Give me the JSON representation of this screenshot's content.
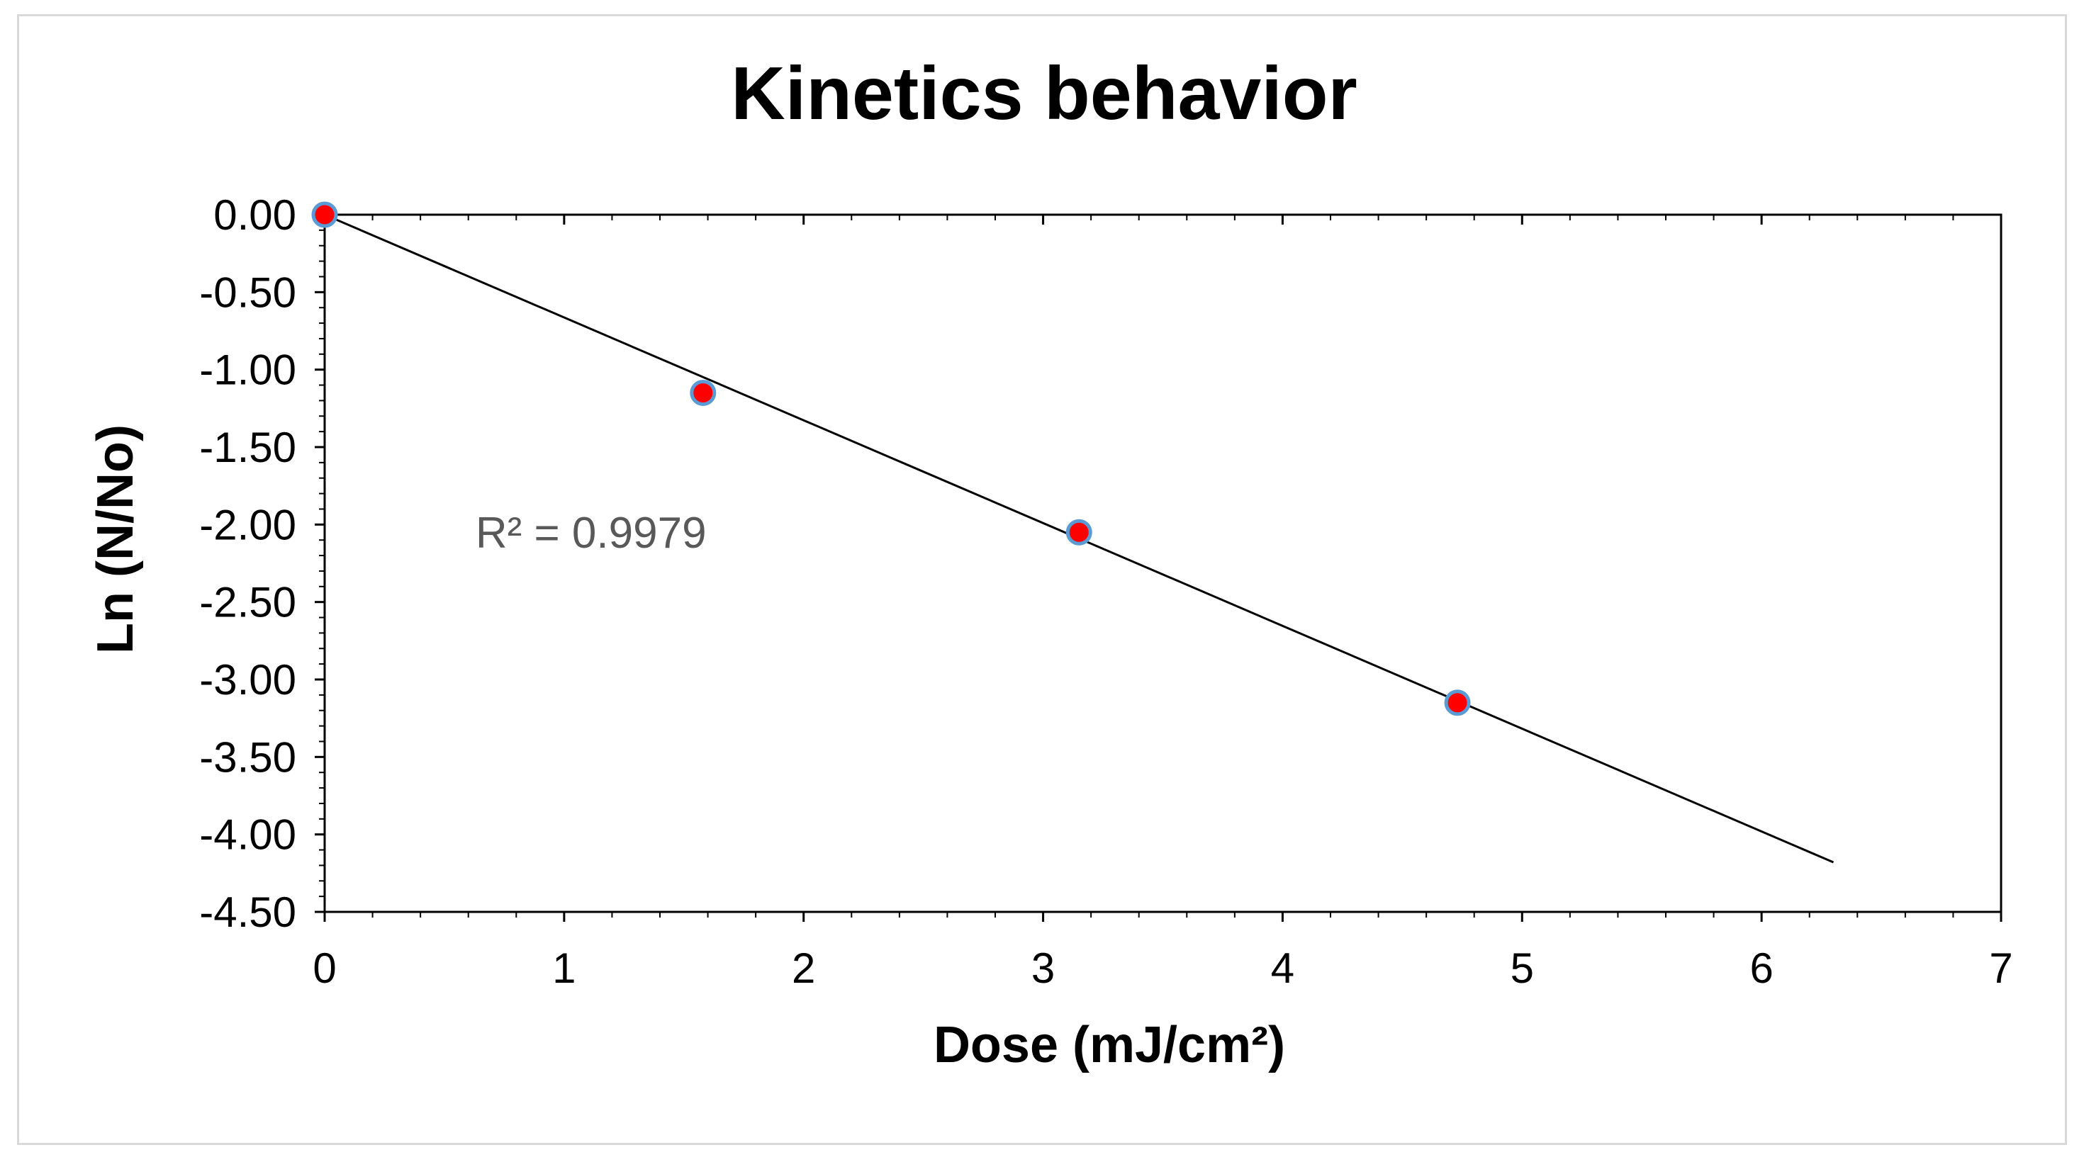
{
  "chart_data": {
    "type": "scatter",
    "title": "Kinetics behavior",
    "xlabel": "Dose (mJ/cm²)",
    "ylabel": "Ln (N/No)",
    "xlim": [
      0,
      7
    ],
    "ylim": [
      -4.5,
      0
    ],
    "x_ticks": [
      0,
      1,
      2,
      3,
      4,
      5,
      6,
      7
    ],
    "x_tick_labels": [
      "0",
      "1",
      "2",
      "3",
      "4",
      "5",
      "6",
      "7"
    ],
    "y_ticks": [
      0,
      -0.5,
      -1,
      -1.5,
      -2,
      -2.5,
      -3,
      -3.5,
      -4,
      -4.5
    ],
    "y_tick_labels": [
      "0.00",
      "-0.50",
      "-1.00",
      "-1.50",
      "-2.00",
      "-2.50",
      "-3.00",
      "-3.50",
      "-4.00",
      "-4.50"
    ],
    "grid": false,
    "legend": "none",
    "series": [
      {
        "name": "Ln (N/No)",
        "x": [
          0,
          1.58,
          3.15,
          4.73
        ],
        "y": [
          0.0,
          -1.15,
          -2.05,
          -3.15
        ],
        "marker_color": "#ff0000",
        "marker_edge_color": "#5b9bd5"
      }
    ],
    "trendline": {
      "type": "linear",
      "x": [
        0,
        6.3
      ],
      "y": [
        0.0,
        -4.18
      ],
      "color": "#000000"
    },
    "annotations": [
      {
        "text": "R² = 0.9979",
        "x": 0.63,
        "y": -2.15
      }
    ]
  }
}
